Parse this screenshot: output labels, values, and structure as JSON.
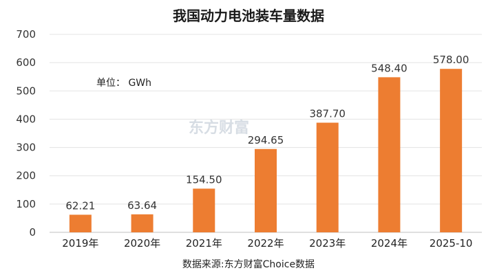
{
  "colors": {
    "bar": "#ed7d31",
    "grid": "#e3e3e3",
    "text": "#333333",
    "watermark": "#d7dde4"
  },
  "annotations": {
    "unit": "单位： GWh",
    "watermark": "东方财富"
  },
  "source": "数据来源:东方财富Choice数据",
  "chart_data": {
    "type": "bar",
    "title": "我国动力电池装车量数据",
    "xlabel": "",
    "ylabel": "",
    "categories": [
      "2019年",
      "2020年",
      "2021年",
      "2022年",
      "2023年",
      "2024年",
      "2025-10"
    ],
    "values": [
      62.21,
      63.64,
      154.5,
      294.65,
      387.7,
      548.4,
      578.0
    ],
    "value_labels": [
      "62.21",
      "63.64",
      "154.50",
      "294.65",
      "387.70",
      "548.40",
      "578.00"
    ],
    "ylim": [
      0,
      700
    ],
    "yticks": [
      0,
      100,
      200,
      300,
      400,
      500,
      600,
      700
    ],
    "grid": true,
    "legend": "none"
  }
}
